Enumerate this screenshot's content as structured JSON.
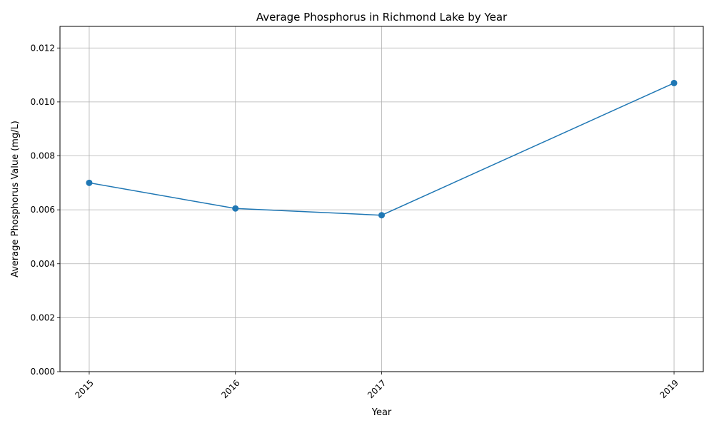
{
  "chart_data": {
    "type": "line",
    "title": "Average Phosphorus in Richmond Lake by Year",
    "xlabel": "Year",
    "ylabel": "Average Phosphorus Value (mg/L)",
    "x": [
      2015,
      2016,
      2017,
      2019
    ],
    "xticks": [
      "2015",
      "2016",
      "2017",
      "2019"
    ],
    "xlim": [
      2014.8,
      2019.2
    ],
    "ylim": [
      0,
      0.0128
    ],
    "yticks": [
      "0.000",
      "0.002",
      "0.004",
      "0.006",
      "0.008",
      "0.010",
      "0.012"
    ],
    "series": [
      {
        "values": [
          0.007,
          0.00605,
          0.0058,
          0.0107
        ],
        "color": "#1f77b4",
        "marker": "circle"
      }
    ],
    "grid": true
  }
}
